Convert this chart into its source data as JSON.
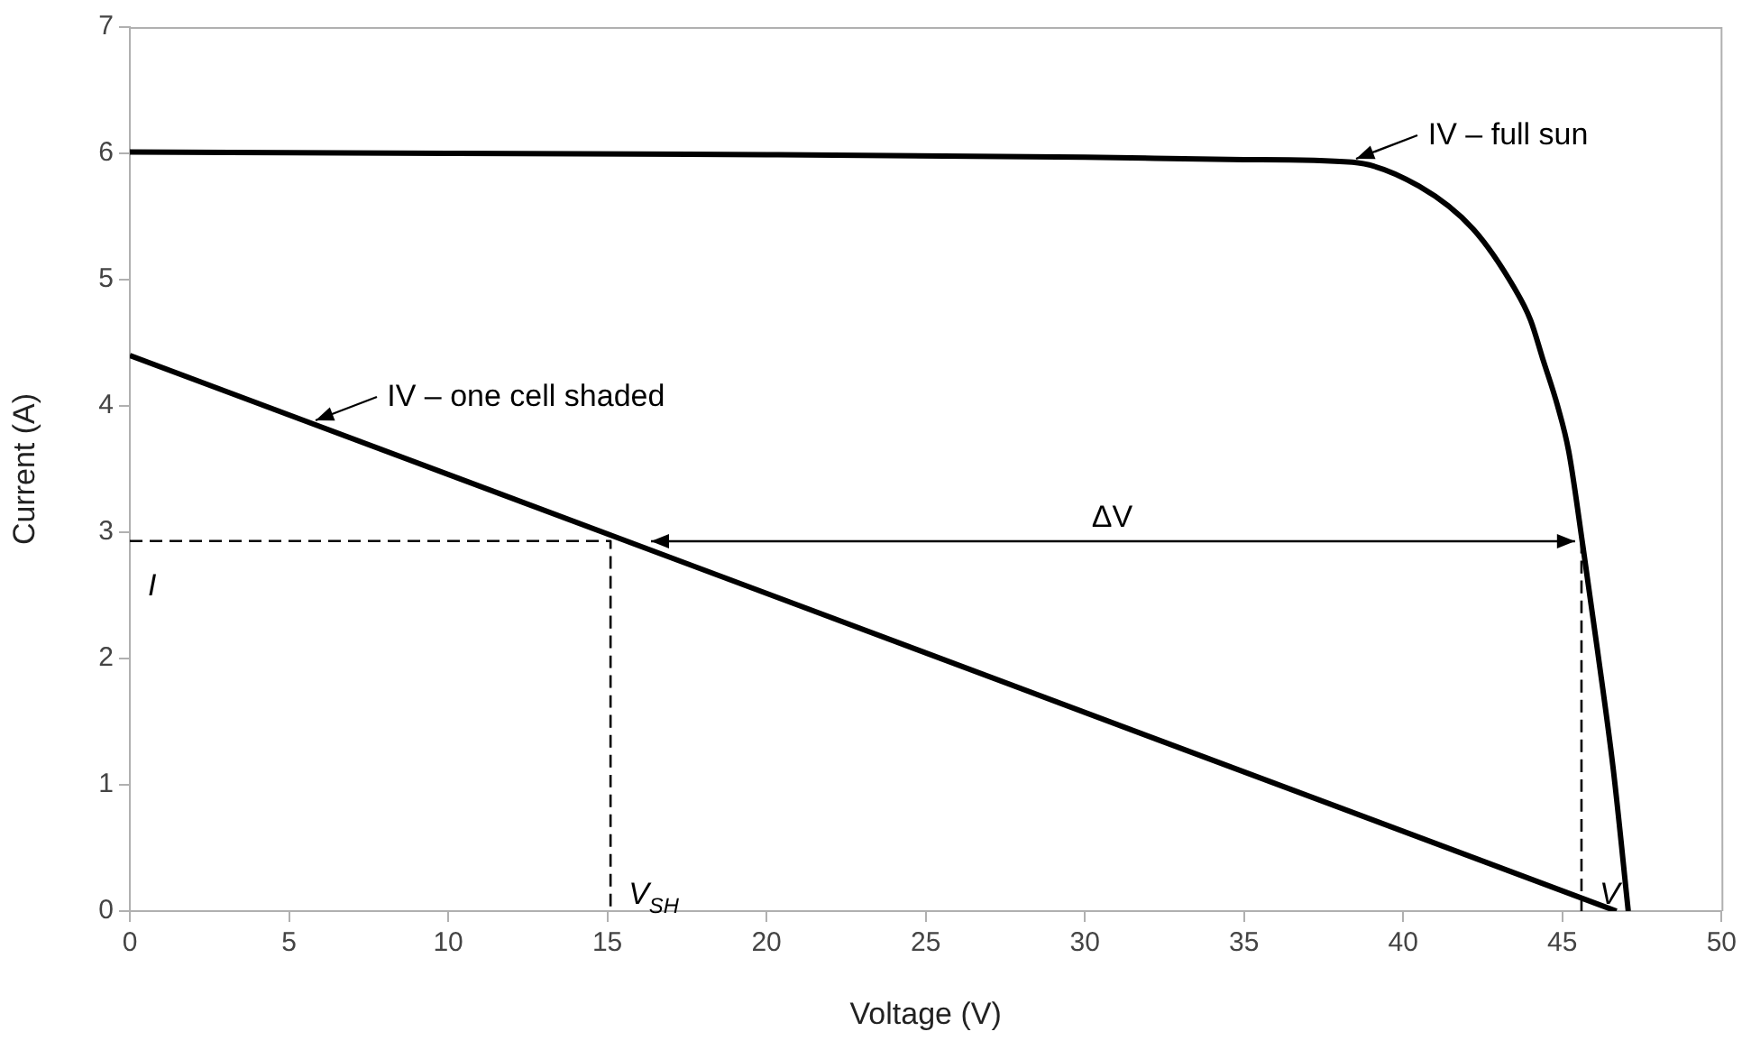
{
  "chart_data": {
    "type": "line",
    "xlabel": "Voltage (V)",
    "ylabel": "Current (A)",
    "xlim": [
      0,
      50
    ],
    "xticks": [
      0,
      5,
      10,
      15,
      20,
      25,
      30,
      35,
      40,
      45,
      50
    ],
    "ylim": [
      0,
      7
    ],
    "yticks": [
      0,
      1,
      2,
      3,
      4,
      5,
      6,
      7
    ],
    "grid": false,
    "legend": false,
    "marker": "none",
    "series": [
      {
        "color": "#000000",
        "line_style": "solid",
        "x": [
          0,
          10,
          20,
          30,
          35,
          38.4,
          40.5,
          42.2,
          43.5,
          44.0,
          44.4,
          44.85,
          45.2,
          45.65,
          46.1,
          46.6,
          47.07
        ],
        "values": [
          6.01,
          6.0,
          5.99,
          5.97,
          5.95,
          5.93,
          5.74,
          5.4,
          4.93,
          4.68,
          4.36,
          4.0,
          3.64,
          2.88,
          2.07,
          1.12,
          0
        ]
      },
      {
        "color": "#000000",
        "line_style": "solid",
        "x": [
          0,
          46.7
        ],
        "values": [
          4.4,
          0
        ]
      },
      {
        "color": "#000000",
        "line_style": "dashed",
        "x": [
          0,
          15.1,
          15.1
        ],
        "values": [
          2.93,
          2.93,
          0
        ]
      },
      {
        "color": "#000000",
        "line_style": "dashed",
        "x": [
          45.6,
          45.6
        ],
        "values": [
          2.93,
          0
        ]
      }
    ],
    "annotations": [
      {
        "text": "IV – full sun",
        "x": 38.4,
        "y": 5.93
      },
      {
        "text": "IV – one cell shaded",
        "x": 5.7,
        "y": 3.86
      },
      "ΔV",
      {
        "text": "I",
        "x": 0,
        "y": 2.93
      },
      {
        "text": "V$_{SH}$",
        "x": 15.1,
        "y": 0
      },
      {
        "text": "V",
        "x": 45.6,
        "y": 0
      }
    ]
  }
}
